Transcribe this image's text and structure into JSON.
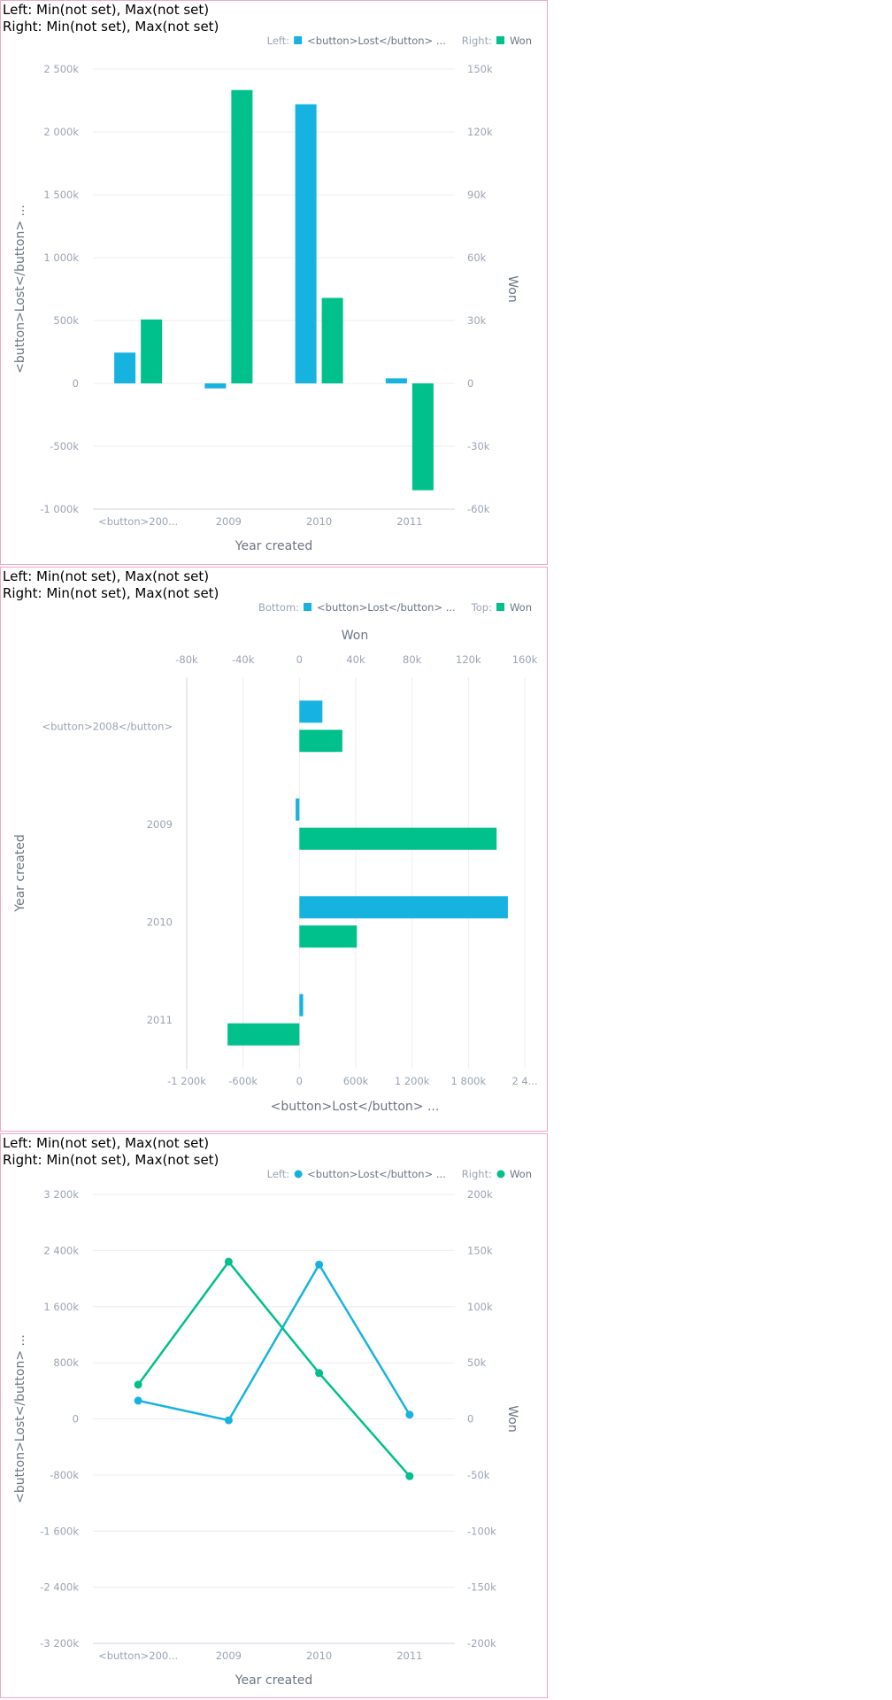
{
  "panels": [
    {
      "range_left": "Left: Min(not set), Max(not set)",
      "range_right": "Right: Min(not set), Max(not set)",
      "legend": {
        "axis1_prefix": "Left:",
        "series1": "<button>Lost</button> ...",
        "axis2_prefix": "Right:",
        "series2": "Won"
      }
    },
    {
      "range_left": "Left: Min(not set), Max(not set)",
      "range_right": "Right: Min(not set), Max(not set)",
      "legend": {
        "axis1_prefix": "Bottom:",
        "series1": "<button>Lost</button> ...",
        "axis2_prefix": "Top:",
        "series2": "Won"
      }
    },
    {
      "range_left": "Left: Min(not set), Max(not set)",
      "range_right": "Right: Min(not set), Max(not set)",
      "legend": {
        "axis1_prefix": "Left:",
        "series1": "<button>Lost</button> ...",
        "axis2_prefix": "Right:",
        "series2": "Won"
      }
    }
  ],
  "colors": {
    "lost": "#17b3e0",
    "won": "#00c08b",
    "tick": "#9aa5b4",
    "title": "#6b7684",
    "grid": "#ececf0"
  },
  "chart_data": [
    {
      "type": "bar",
      "orientation": "vertical",
      "categories": [
        "<button>200...",
        "2009",
        "2010",
        "2011"
      ],
      "xlabel": "Year created",
      "ylabel": "<button>Lost</button> ...",
      "y2label": "Won",
      "ylim": [
        -1000000,
        2500000
      ],
      "yticks": [
        "2 500k",
        "2 000k",
        "1 500k",
        "1 000k",
        "500k",
        "0",
        "-500k",
        "-1 000k"
      ],
      "y2lim": [
        -60000,
        150000
      ],
      "y2ticks": [
        "150k",
        "120k",
        "90k",
        "60k",
        "30k",
        "0",
        "-30k",
        "-60k"
      ],
      "grid": true,
      "legend": "top-right",
      "series": [
        {
          "name": "<button>Lost</button> ...",
          "axis": "left",
          "values": [
            245000,
            -40000,
            2220000,
            40000
          ]
        },
        {
          "name": "Won",
          "axis": "right",
          "values": [
            30500,
            140000,
            40800,
            -51000
          ]
        }
      ]
    },
    {
      "type": "bar",
      "orientation": "horizontal",
      "categories": [
        "<button>2008</button>",
        "2009",
        "2010",
        "2011"
      ],
      "ylabel": "Year created",
      "xlabel": "<button>Lost</button> ...",
      "x2label": "Won",
      "xlim": [
        -1200000,
        2400000
      ],
      "xticks": [
        "-1 200k",
        "-600k",
        "0",
        "600k",
        "1 200k",
        "1 800k",
        "2 4..."
      ],
      "x2lim": [
        -80000,
        160000
      ],
      "x2ticks": [
        "-80k",
        "-40k",
        "0",
        "40k",
        "80k",
        "120k",
        "160k"
      ],
      "grid": true,
      "legend": "top-right",
      "series": [
        {
          "name": "<button>Lost</button> ...",
          "axis": "bottom",
          "values": [
            245000,
            -40000,
            2220000,
            40000
          ]
        },
        {
          "name": "Won",
          "axis": "top",
          "values": [
            30500,
            140000,
            40800,
            -51000
          ]
        }
      ]
    },
    {
      "type": "line",
      "categories": [
        "<button>200...",
        "2009",
        "2010",
        "2011"
      ],
      "xlabel": "Year created",
      "ylabel": "<button>Lost</button> ...",
      "y2label": "Won",
      "ylim": [
        -3200000,
        3200000
      ],
      "yticks": [
        "3 200k",
        "2 400k",
        "1 600k",
        "800k",
        "0",
        "-800k",
        "-1 600k",
        "-2 400k",
        "-3 200k"
      ],
      "y2lim": [
        -200000,
        200000
      ],
      "y2ticks": [
        "200k",
        "150k",
        "100k",
        "50k",
        "0",
        "-50k",
        "-100k",
        "-150k",
        "-200k"
      ],
      "grid": true,
      "legend": "top-right",
      "series": [
        {
          "name": "<button>Lost</button> ...",
          "axis": "left",
          "values": [
            260000,
            -20000,
            2200000,
            60000
          ]
        },
        {
          "name": "Won",
          "axis": "right",
          "values": [
            30500,
            140000,
            40800,
            -51000
          ]
        }
      ]
    }
  ]
}
